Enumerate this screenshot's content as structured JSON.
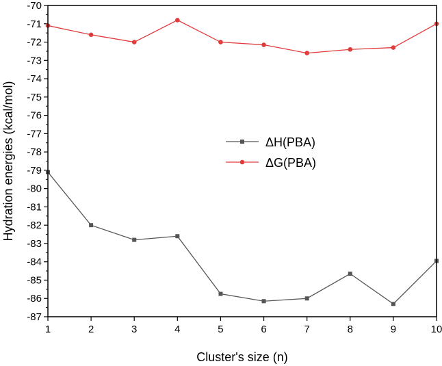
{
  "chart_data": {
    "type": "line",
    "xlabel": "Cluster's size (n)",
    "ylabel": "Hydration energies (kcal/mol)",
    "x": [
      1,
      2,
      3,
      4,
      5,
      6,
      7,
      8,
      9,
      10
    ],
    "xlim": [
      1,
      10
    ],
    "ylim": [
      -87,
      -70
    ],
    "xticks": [
      "1",
      "2",
      "3",
      "4",
      "5",
      "6",
      "7",
      "8",
      "9",
      "10"
    ],
    "yticks": [
      "-70",
      "-71",
      "-72",
      "-73",
      "-74",
      "-75",
      "-76",
      "-77",
      "-78",
      "-79",
      "-80",
      "-81",
      "-82",
      "-83",
      "-84",
      "-85",
      "-86",
      "-87"
    ],
    "grid": false,
    "legend_position": "center",
    "series": [
      {
        "name": "ΔH(PBA)",
        "color": "#555555",
        "marker": "square",
        "values": [
          -79.1,
          -82.0,
          -82.8,
          -82.6,
          -85.75,
          -86.15,
          -86.0,
          -84.65,
          -86.3,
          -83.95
        ]
      },
      {
        "name": "ΔG(PBA)",
        "color": "#e03c3c",
        "marker": "circle",
        "values": [
          -71.1,
          -71.6,
          -72.0,
          -70.8,
          -72.0,
          -72.15,
          -72.6,
          -72.4,
          -72.3,
          -71.0
        ]
      }
    ]
  }
}
